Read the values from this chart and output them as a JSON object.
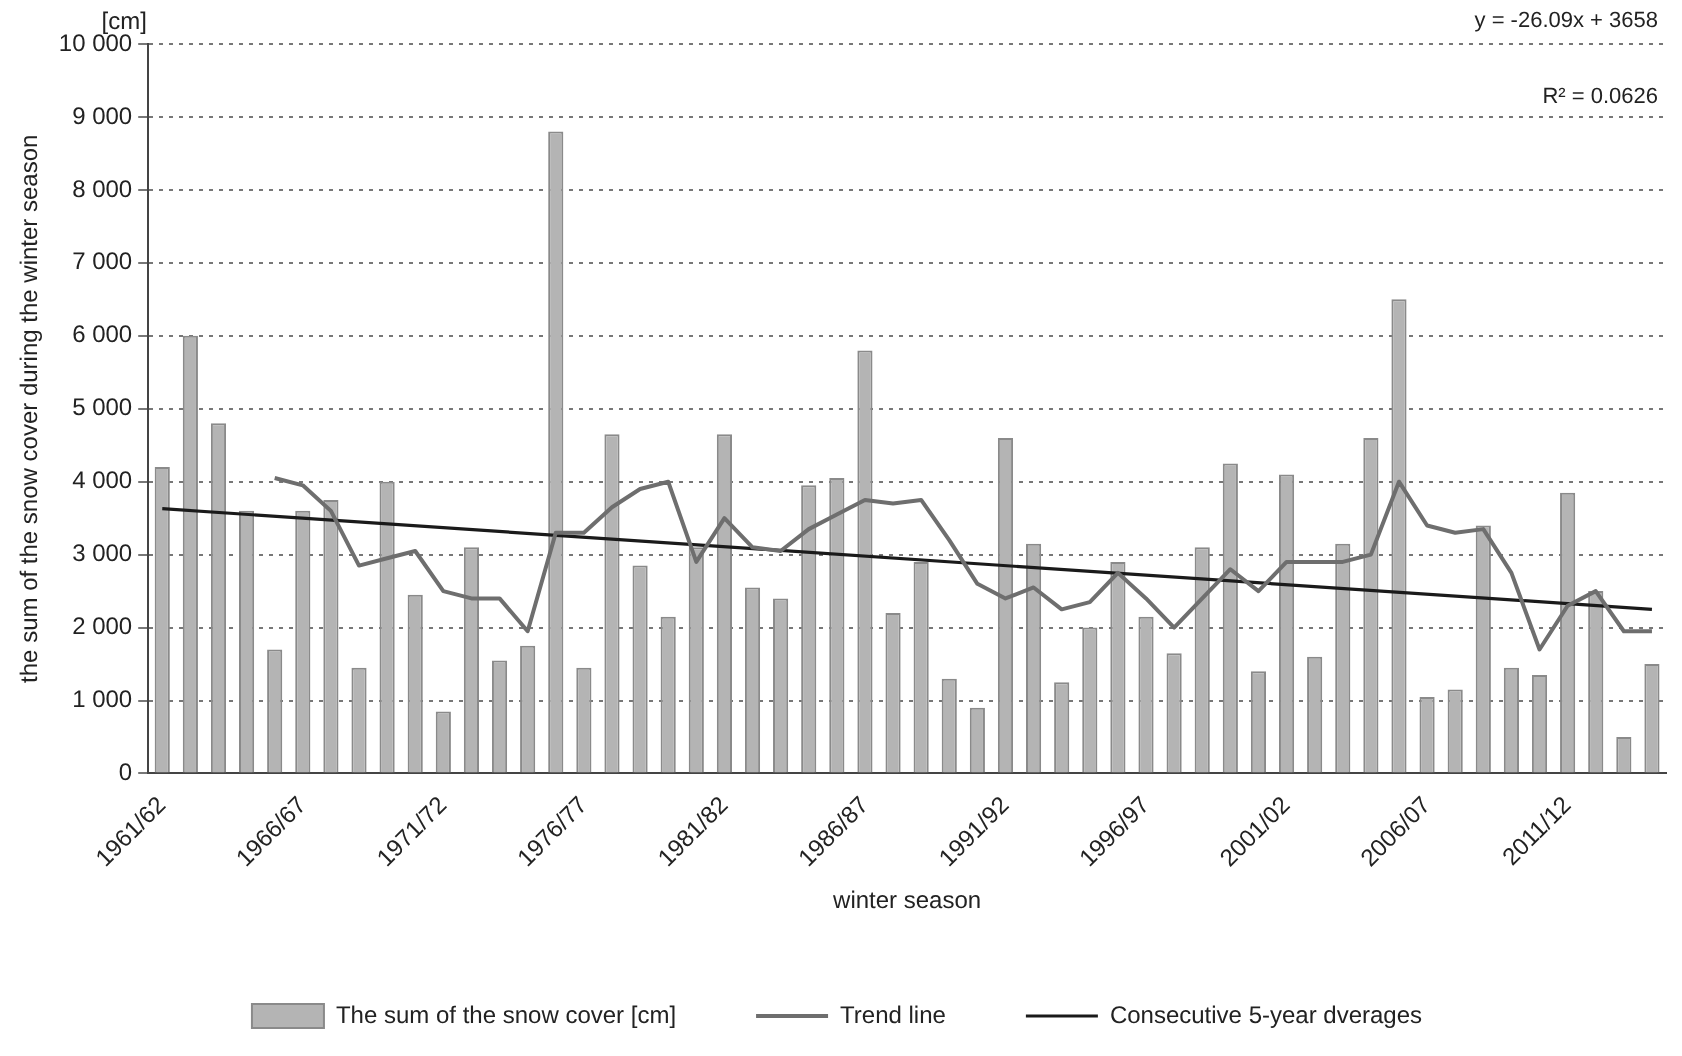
{
  "chart_data": {
    "type": "bar",
    "xlabel": "winter season",
    "ylabel": "the sum of the snow cover during the winter season",
    "categories": [
      "1961/62",
      null,
      null,
      null,
      null,
      "1966/67",
      null,
      null,
      null,
      null,
      "1971/72",
      null,
      null,
      null,
      null,
      "1976/77",
      null,
      null,
      null,
      null,
      "1981/82",
      null,
      null,
      null,
      null,
      "1986/87",
      null,
      null,
      null,
      null,
      "1991/92",
      null,
      null,
      null,
      null,
      "1996/97",
      null,
      null,
      null,
      null,
      "2001/02",
      null,
      null,
      null,
      null,
      "2006/07",
      null,
      null,
      null,
      null,
      "2011/12",
      null,
      null,
      null
    ],
    "series": [
      {
        "name": "The sum of the snow cover [cm]",
        "color": "#b4b4b4",
        "values": [
          4200,
          6000,
          4800,
          3600,
          1700,
          3600,
          3750,
          1450,
          4000,
          2450,
          850,
          3100,
          1550,
          1750,
          8800,
          1450,
          4650,
          2850,
          2150,
          3100,
          4650,
          2550,
          2400,
          3950,
          4050,
          5800,
          2200,
          2900,
          1300,
          900,
          4600,
          3150,
          1250,
          2000,
          2900,
          2150,
          1650,
          3100,
          4250,
          1400,
          4100,
          1600,
          3150,
          4600,
          6500,
          1050,
          1150,
          3400,
          1450,
          1350,
          3850,
          2500,
          500,
          1500
        ]
      },
      {
        "name": "Trend line",
        "type": "line",
        "color": "#6e6e6e",
        "values": [
          null,
          null,
          null,
          null,
          4050,
          3950,
          3600,
          2850,
          2950,
          3050,
          2500,
          2400,
          2400,
          1950,
          3300,
          3300,
          3650,
          3900,
          4000,
          2900,
          3500,
          3100,
          3050,
          3350,
          3550,
          3750,
          3700,
          3750,
          3200,
          2600,
          2400,
          2550,
          2250,
          2350,
          2750,
          2400,
          2000,
          2400,
          2800,
          2500,
          2900,
          2900,
          2900,
          3000,
          4000,
          3400,
          3300,
          3350,
          2750,
          1700,
          2300,
          2500,
          1950,
          1950
        ]
      },
      {
        "name": "Consecutive 5-year dverages",
        "type": "line",
        "color": "#1a1a1a",
        "values": [
          3630,
          null,
          null,
          null,
          null,
          null,
          null,
          null,
          null,
          null,
          null,
          null,
          null,
          null,
          null,
          null,
          null,
          null,
          null,
          null,
          null,
          null,
          null,
          null,
          null,
          null,
          null,
          null,
          null,
          null,
          null,
          null,
          null,
          null,
          null,
          null,
          null,
          null,
          null,
          null,
          null,
          null,
          null,
          null,
          null,
          null,
          null,
          null,
          null,
          null,
          null,
          null,
          null,
          2250
        ]
      }
    ],
    "ylim": [
      0,
      10000
    ],
    "yticks": [
      0,
      {
        "value": 1000,
        "label": "1 000"
      },
      {
        "value": 2000,
        "label": "2 000"
      },
      {
        "value": 3000,
        "label": "3 000"
      },
      {
        "value": 4000,
        "label": "4 000"
      },
      {
        "value": 5000,
        "label": "5 000"
      },
      {
        "value": 6000,
        "label": "6 000"
      },
      {
        "value": 7000,
        "label": "7 000"
      },
      {
        "value": 8000,
        "label": "8 000"
      },
      {
        "value": 9000,
        "label": "9 000"
      },
      {
        "value": 10000,
        "label": "10 000"
      }
    ],
    "grid": "y",
    "legend": "bottom",
    "line_style": "solid",
    "marker": "none",
    "annotations": [
      "[cm]",
      "y = -26.09x + 3658",
      "R² = 0.0626"
    ]
  }
}
